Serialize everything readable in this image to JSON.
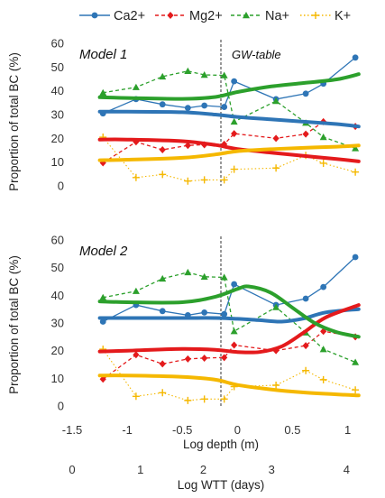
{
  "colors": {
    "Ca2+": "#2E75B6",
    "Mg2+": "#E41A1C",
    "Na+": "#2CA02C",
    "K+": "#F5B800"
  },
  "legend": [
    "Ca2+",
    "Mg2+",
    "Na+",
    "K+"
  ],
  "chart_data": {
    "type": "line",
    "xlabel": "Log depth (m)",
    "x2label": "Log WTT (days)",
    "ylabel": "Proportion of total BC (%)",
    "xlim": [
      -1.5,
      1.2
    ],
    "xticks": [
      "-1.5",
      "-1",
      "-0.5",
      "0",
      "0.5",
      "1"
    ],
    "x2ticks": [
      "0",
      "1",
      "2",
      "3",
      "4"
    ],
    "x2_at_x": [
      -1.5,
      -0.88,
      -0.31,
      0.31,
      0.99
    ],
    "ylim": [
      0,
      60
    ],
    "yticks": [
      "0",
      "10",
      "20",
      "30",
      "40",
      "50",
      "60"
    ],
    "gw_table_x": -0.15,
    "gw_table_label": "GW-table",
    "legend_position": "top",
    "panels": [
      {
        "title": "Model 1",
        "observed": [
          {
            "name": "Ca2+",
            "marker": "circle",
            "style": "solid",
            "x": [
              -1.22,
              -0.92,
              -0.68,
              -0.45,
              -0.3,
              -0.12,
              -0.03,
              0.35,
              0.62,
              0.78,
              1.07
            ],
            "y": [
              30.5,
              36.5,
              34.3,
              32.8,
              33.8,
              33.2,
              44.0,
              36.5,
              38.8,
              43.0,
              54.0
            ]
          },
          {
            "name": "Mg2+",
            "marker": "diamond",
            "style": "dashed",
            "x": [
              -1.22,
              -0.92,
              -0.68,
              -0.45,
              -0.3,
              -0.12,
              -0.03,
              0.35,
              0.62,
              0.78,
              1.07
            ],
            "y": [
              9.7,
              18.5,
              15.2,
              17.0,
              17.3,
              17.5,
              22.0,
              20.0,
              21.8,
              27.0,
              25.0
            ]
          },
          {
            "name": "Na+",
            "marker": "triangle",
            "style": "dashed",
            "x": [
              -1.22,
              -0.92,
              -0.68,
              -0.45,
              -0.3,
              -0.12,
              -0.03,
              0.35,
              0.62,
              0.78,
              1.07
            ],
            "y": [
              39.2,
              41.5,
              46.0,
              48.3,
              46.7,
              46.5,
              27.0,
              35.7,
              26.5,
              20.5,
              15.8
            ]
          },
          {
            "name": "K+",
            "marker": "plus",
            "style": "dotted",
            "x": [
              -1.22,
              -0.92,
              -0.68,
              -0.45,
              -0.3,
              -0.12,
              -0.03,
              0.35,
              0.62,
              0.78,
              1.07
            ],
            "y": [
              20.5,
              3.5,
              4.8,
              2.0,
              2.5,
              2.5,
              7.0,
              7.5,
              12.8,
              9.5,
              5.8
            ]
          }
        ],
        "modeled": [
          {
            "name": "Ca2+",
            "x": [
              -1.25,
              -1.0,
              -0.5,
              -0.2,
              0.0,
              0.3,
              0.6,
              0.9,
              1.1
            ],
            "y": [
              31.2,
              31.2,
              31.0,
              30.0,
              29.0,
              28.0,
              27.0,
              26.0,
              25.0
            ]
          },
          {
            "name": "Mg2+",
            "x": [
              -1.25,
              -1.0,
              -0.5,
              -0.2,
              0.0,
              0.3,
              0.6,
              0.9,
              1.1
            ],
            "y": [
              19.5,
              19.5,
              18.8,
              17.2,
              15.5,
              14.0,
              12.6,
              11.3,
              10.3
            ]
          },
          {
            "name": "Na+",
            "x": [
              -1.25,
              -1.0,
              -0.5,
              -0.2,
              0.0,
              0.3,
              0.6,
              0.9,
              1.1
            ],
            "y": [
              37.3,
              37.0,
              36.6,
              37.4,
              39.5,
              41.8,
              43.3,
              44.8,
              47.0
            ]
          },
          {
            "name": "K+",
            "x": [
              -1.25,
              -1.0,
              -0.5,
              -0.2,
              0.0,
              0.3,
              0.6,
              0.9,
              1.1
            ],
            "y": [
              10.8,
              11.0,
              11.8,
              13.2,
              14.6,
              15.4,
              16.0,
              16.5,
              17.0
            ]
          }
        ]
      },
      {
        "title": "Model 2",
        "observed": [
          {
            "name": "Ca2+",
            "marker": "circle",
            "style": "solid",
            "x": [
              -1.22,
              -0.92,
              -0.68,
              -0.45,
              -0.3,
              -0.12,
              -0.03,
              0.35,
              0.62,
              0.78,
              1.07
            ],
            "y": [
              30.5,
              36.5,
              34.3,
              32.8,
              33.8,
              33.2,
              44.0,
              36.5,
              38.8,
              43.0,
              53.8
            ]
          },
          {
            "name": "Mg2+",
            "marker": "diamond",
            "style": "dashed",
            "x": [
              -1.22,
              -0.92,
              -0.68,
              -0.45,
              -0.3,
              -0.12,
              -0.03,
              0.35,
              0.62,
              0.78,
              1.07
            ],
            "y": [
              9.7,
              18.5,
              15.2,
              17.0,
              17.3,
              17.5,
              22.0,
              20.0,
              21.8,
              27.0,
              25.0
            ]
          },
          {
            "name": "Na+",
            "marker": "triangle",
            "style": "dashed",
            "x": [
              -1.22,
              -0.92,
              -0.68,
              -0.45,
              -0.3,
              -0.12,
              -0.03,
              0.35,
              0.62,
              0.78,
              1.07
            ],
            "y": [
              39.2,
              41.5,
              46.0,
              48.3,
              46.7,
              46.5,
              27.0,
              35.7,
              26.5,
              20.5,
              15.8
            ]
          },
          {
            "name": "K+",
            "marker": "plus",
            "style": "dotted",
            "x": [
              -1.22,
              -0.92,
              -0.68,
              -0.45,
              -0.3,
              -0.12,
              -0.03,
              0.35,
              0.62,
              0.78,
              1.07
            ],
            "y": [
              20.5,
              3.5,
              4.8,
              2.0,
              2.5,
              2.5,
              7.0,
              7.5,
              12.8,
              9.5,
              5.8
            ]
          }
        ],
        "modeled": [
          {
            "name": "Ca2+",
            "x": [
              -1.25,
              -1.0,
              -0.5,
              -0.2,
              0.0,
              0.2,
              0.4,
              0.6,
              0.8,
              1.1
            ],
            "y": [
              31.8,
              31.8,
              31.8,
              31.8,
              31.5,
              31.0,
              30.5,
              31.6,
              33.8,
              35.0
            ]
          },
          {
            "name": "Mg2+",
            "x": [
              -1.25,
              -1.0,
              -0.5,
              -0.2,
              0.0,
              0.2,
              0.4,
              0.6,
              0.8,
              1.1
            ],
            "y": [
              19.7,
              20.0,
              20.6,
              20.3,
              19.5,
              19.5,
              21.5,
              26.5,
              32.0,
              36.5
            ]
          },
          {
            "name": "Na+",
            "x": [
              -1.25,
              -1.0,
              -0.5,
              -0.2,
              0.0,
              0.1,
              0.3,
              0.5,
              0.7,
              0.9,
              1.1
            ],
            "y": [
              37.8,
              37.5,
              37.5,
              39.5,
              42.3,
              43.2,
              41.0,
              35.5,
              30.0,
              26.7,
              25.0
            ]
          },
          {
            "name": "K+",
            "x": [
              -1.25,
              -1.0,
              -0.5,
              -0.2,
              0.0,
              0.3,
              0.6,
              0.9,
              1.1
            ],
            "y": [
              11.0,
              11.0,
              10.5,
              9.5,
              7.6,
              6.0,
              4.9,
              4.2,
              3.8
            ]
          }
        ]
      }
    ]
  }
}
